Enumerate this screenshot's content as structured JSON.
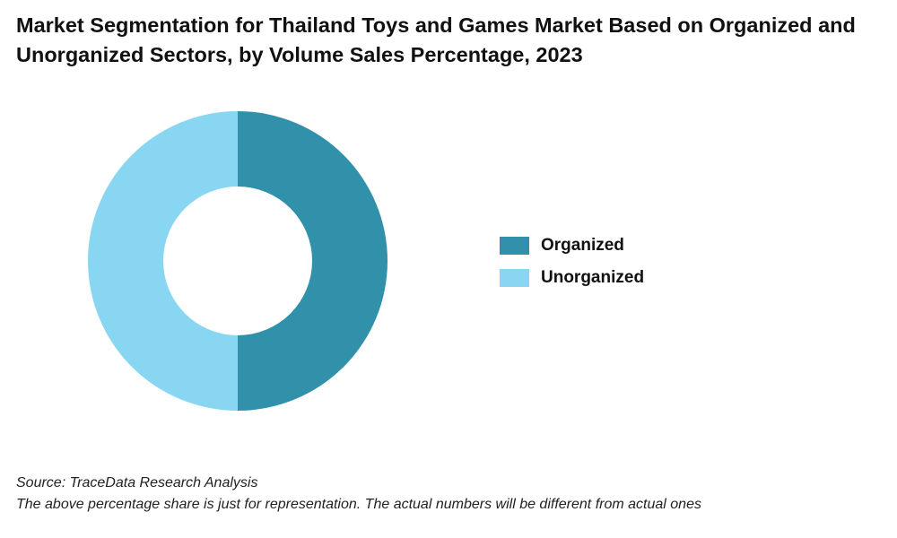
{
  "title": "Market Segmentation for Thailand Toys and Games Market Based on Organized and Unorganized Sectors, by Volume Sales Percentage, 2023",
  "source": "Source: TraceData Research Analysis",
  "note": "The above percentage share is just for representation. The actual numbers will be different from actual ones",
  "chart_data": {
    "type": "pie",
    "variant": "donut",
    "title": "Market Segmentation for Thailand Toys and Games Market Based on Organized and Unorganized Sectors, by Volume Sales Percentage, 2023",
    "categories": [
      "Organized",
      "Unorganized"
    ],
    "values": [
      50,
      50
    ],
    "colors": [
      "#3191aa",
      "#88d6f1"
    ],
    "legend_position": "right",
    "start_angle": "12 o'clock",
    "direction": "clockwise"
  }
}
